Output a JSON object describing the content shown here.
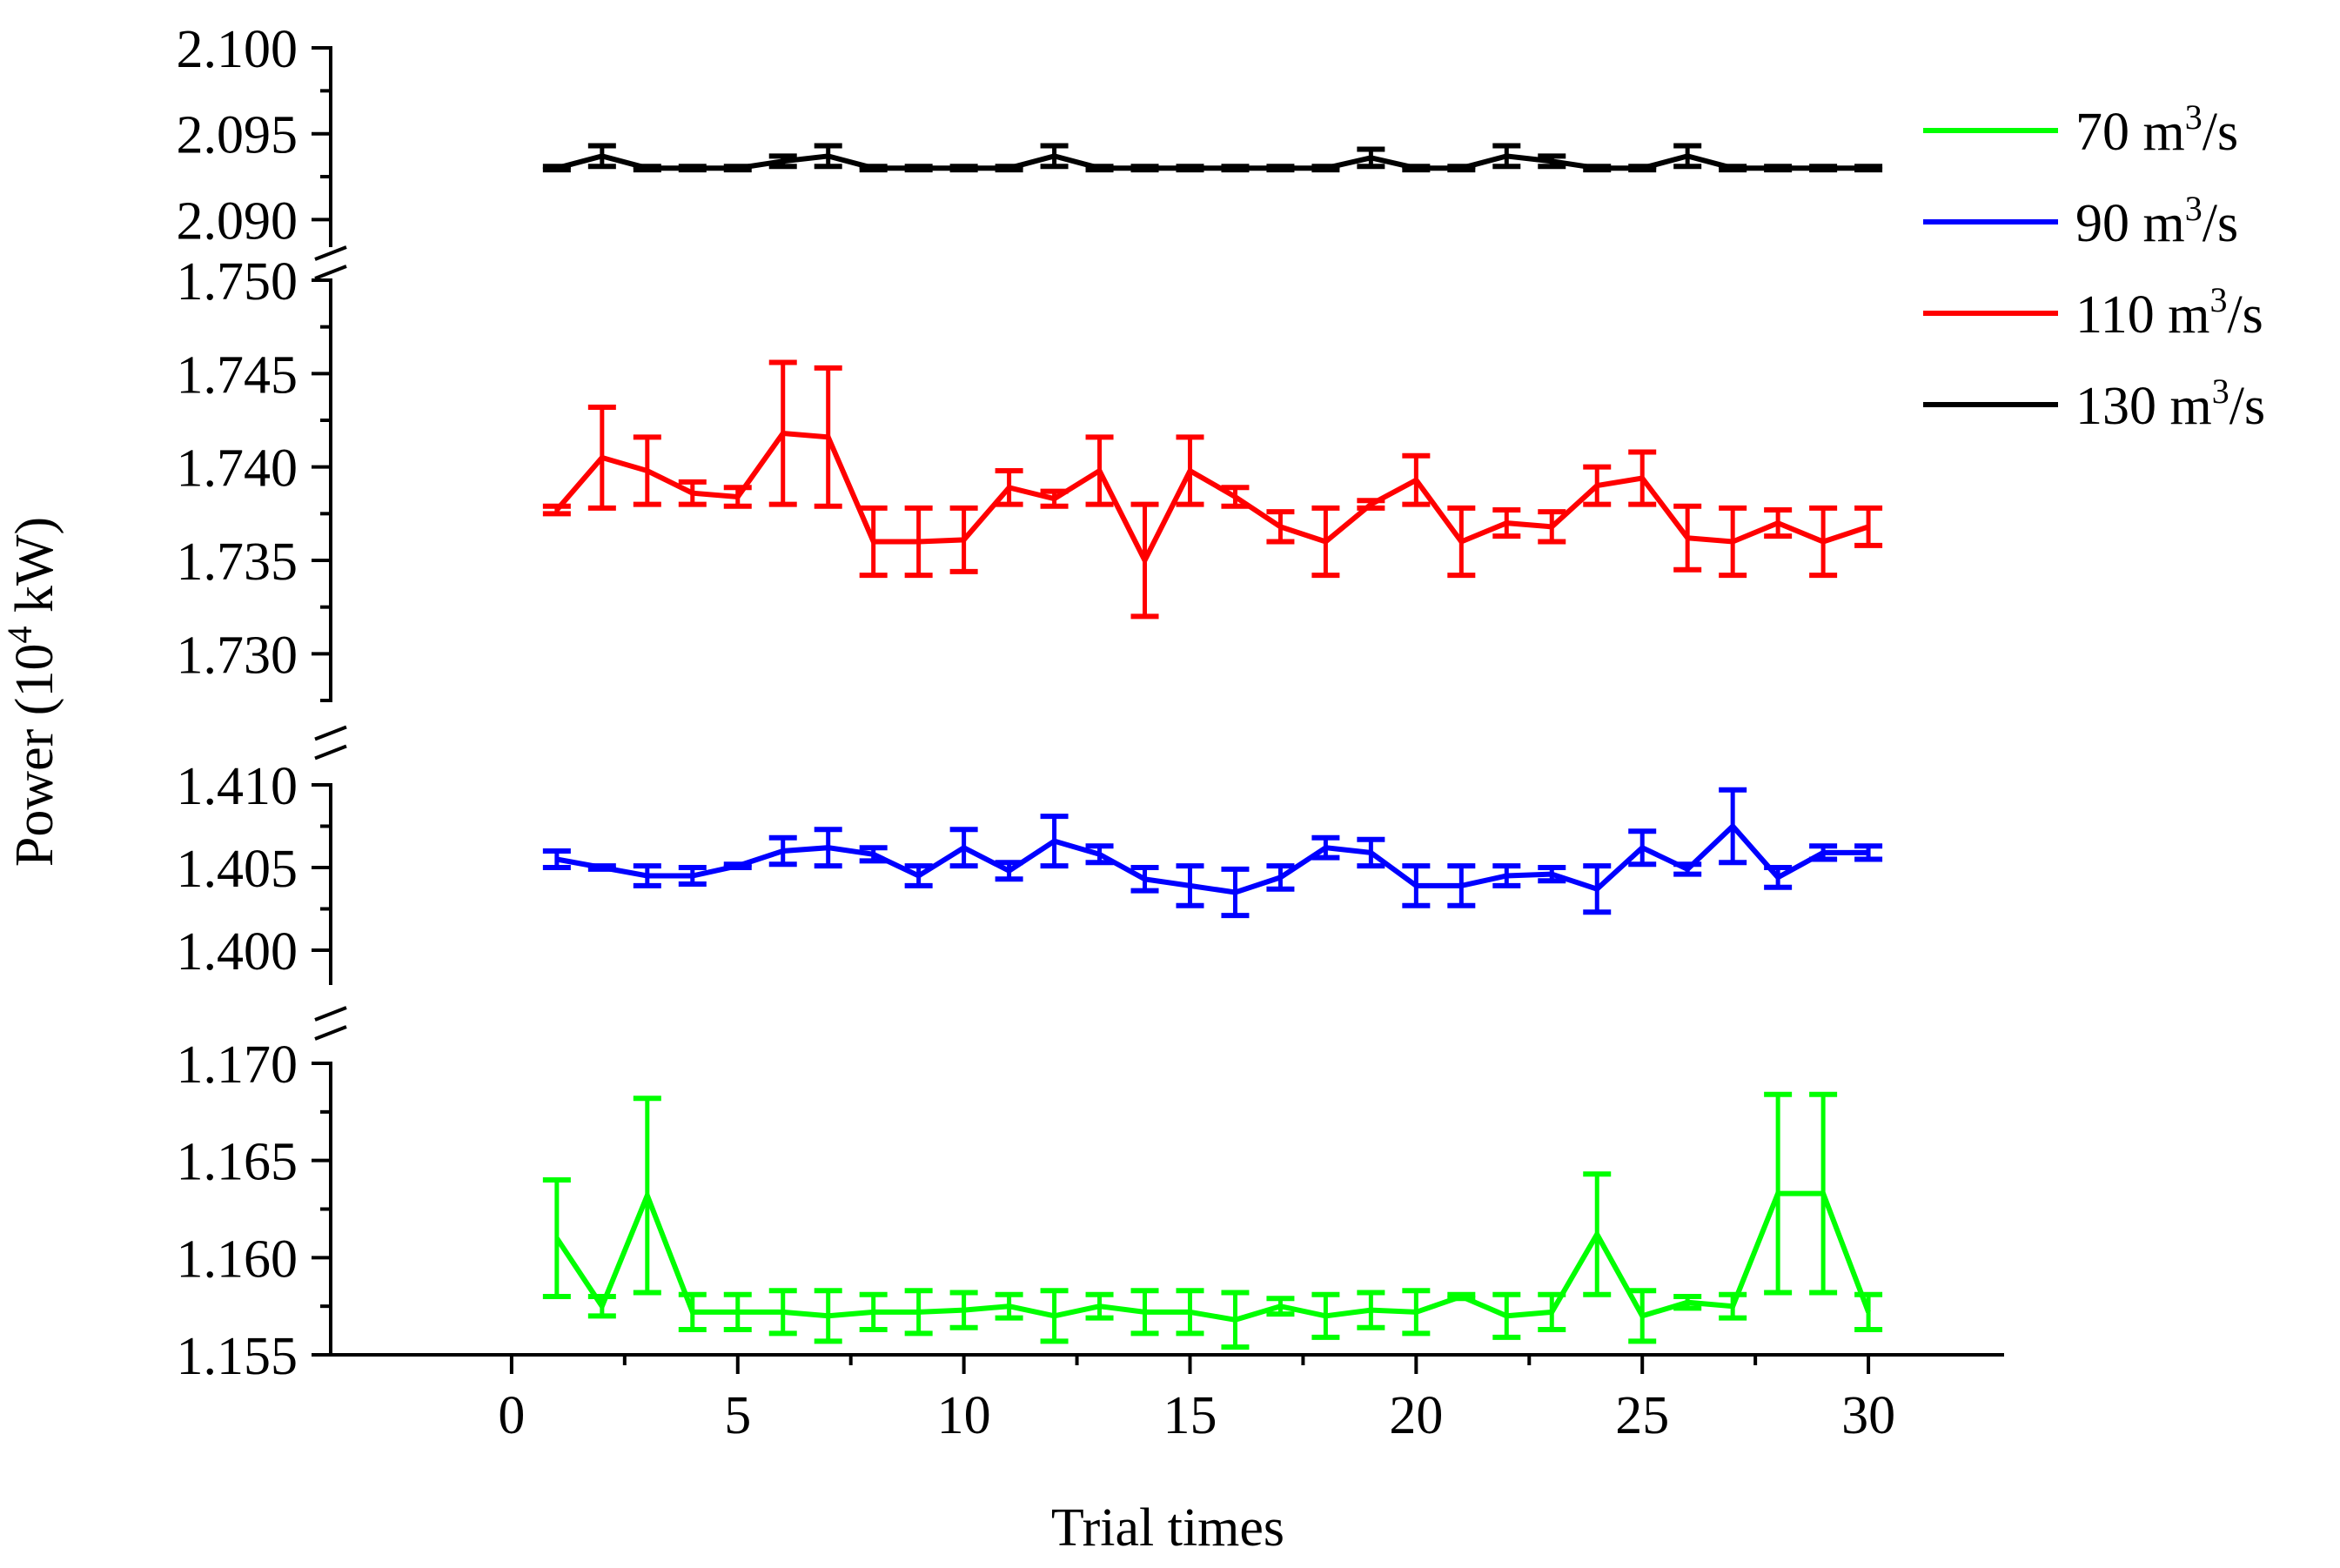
{
  "chart_data": {
    "type": "line",
    "xlabel": "Trial times",
    "ylabel": {
      "base": "Power (10",
      "sup": "4",
      "rest": " kW)"
    },
    "xlim": [
      -4,
      33
    ],
    "x_ticks": [
      0,
      5,
      10,
      15,
      20,
      25,
      30
    ],
    "x_tick_labels": [
      "0",
      "5",
      "10",
      "15",
      "20",
      "25",
      "30"
    ],
    "segments": [
      {
        "name": "130",
        "ylim": [
          2.0885,
          2.1
        ],
        "ticks": [
          2.09,
          2.095,
          2.1
        ],
        "tick_labels": [
          "2.090",
          "2.095",
          "2.100"
        ]
      },
      {
        "name": "110",
        "ylim": [
          1.7275,
          1.75
        ],
        "ticks": [
          1.73,
          1.735,
          1.74,
          1.745,
          1.75
        ],
        "tick_labels": [
          "1.730",
          "1.735",
          "1.740",
          "1.745",
          "1.750"
        ]
      },
      {
        "name": "90",
        "ylim": [
          1.398,
          1.41
        ],
        "ticks": [
          1.4,
          1.405,
          1.41
        ],
        "tick_labels": [
          "1.400",
          "1.405",
          "1.410"
        ]
      },
      {
        "name": "70",
        "ylim": [
          1.155,
          1.17
        ],
        "ticks": [
          1.155,
          1.16,
          1.165,
          1.17
        ],
        "tick_labels": [
          "1.155",
          "1.160",
          "1.165",
          "1.170"
        ]
      }
    ],
    "x": [
      1,
      2,
      3,
      4,
      5,
      6,
      7,
      8,
      9,
      10,
      11,
      12,
      13,
      14,
      15,
      16,
      17,
      18,
      19,
      20,
      21,
      22,
      23,
      24,
      25,
      26,
      27,
      28,
      29,
      30
    ],
    "series": [
      {
        "name": "70 m3/s",
        "legend_base": "70 m",
        "legend_sup": "3",
        "legend_rest": "/s",
        "color": "#00ff00",
        "segment": 3,
        "values": [
          1.161,
          1.1575,
          1.1632,
          1.1572,
          1.1572,
          1.1572,
          1.157,
          1.1572,
          1.1572,
          1.1573,
          1.1575,
          1.157,
          1.1575,
          1.1572,
          1.1572,
          1.1568,
          1.1575,
          1.157,
          1.1573,
          1.1572,
          1.158,
          1.157,
          1.1572,
          1.1612,
          1.157,
          1.1577,
          1.1575,
          1.1633,
          1.1633,
          1.1572
        ],
        "errors": [
          0.003,
          0.0005,
          0.005,
          0.0009,
          0.0009,
          0.0011,
          0.0013,
          0.0009,
          0.0011,
          0.0009,
          0.0006,
          0.0013,
          0.0006,
          0.0011,
          0.0011,
          0.0014,
          0.0004,
          0.0011,
          0.0009,
          0.0011,
          0.0001,
          0.0011,
          0.0009,
          0.0031,
          0.0013,
          0.0003,
          0.0006,
          0.0051,
          0.0051,
          0.0009
        ]
      },
      {
        "name": "90 m3/s",
        "legend_base": "90 m",
        "legend_sup": "3",
        "legend_rest": "/s",
        "color": "#0000ff",
        "segment": 2,
        "values": [
          1.4055,
          1.405,
          1.4045,
          1.4045,
          1.4051,
          1.406,
          1.4062,
          1.4058,
          1.4045,
          1.4062,
          1.4048,
          1.4066,
          1.4058,
          1.4043,
          1.4039,
          1.4035,
          1.4044,
          1.4062,
          1.4059,
          1.4039,
          1.4039,
          1.4045,
          1.4046,
          1.4037,
          1.4062,
          1.4049,
          1.4075,
          1.4044,
          1.4059,
          1.4059
        ],
        "errors": [
          0.0005,
          0.0001,
          0.0006,
          0.0005,
          0.0001,
          0.0008,
          0.0011,
          0.0004,
          0.0006,
          0.0011,
          0.0005,
          0.0015,
          0.0005,
          0.0007,
          0.0012,
          0.0014,
          0.0007,
          0.0006,
          0.0008,
          0.0012,
          0.0012,
          0.0006,
          0.0004,
          0.0014,
          0.001,
          0.0003,
          0.0022,
          0.0006,
          0.0004,
          0.0004
        ]
      },
      {
        "name": "110 m3/s",
        "legend_base": "110 m",
        "legend_sup": "3",
        "legend_rest": "/s",
        "color": "#ff0000",
        "segment": 1,
        "values": [
          1.7377,
          1.7405,
          1.7398,
          1.7386,
          1.7384,
          1.7418,
          1.7416,
          1.736,
          1.736,
          1.7361,
          1.7389,
          1.7383,
          1.7398,
          1.735,
          1.7398,
          1.7384,
          1.7368,
          1.736,
          1.738,
          1.7393,
          1.736,
          1.737,
          1.7368,
          1.739,
          1.7394,
          1.7362,
          1.736,
          1.737,
          1.736,
          1.7368
        ],
        "errors": [
          0.0002,
          0.0027,
          0.0018,
          0.0006,
          0.0005,
          0.0038,
          0.0037,
          0.0018,
          0.0018,
          0.0017,
          0.0009,
          0.0004,
          0.0018,
          0.003,
          0.0018,
          0.0005,
          0.0008,
          0.0018,
          0.0002,
          0.0013,
          0.0018,
          0.0007,
          0.0008,
          0.001,
          0.0014,
          0.0017,
          0.0018,
          0.0007,
          0.0018,
          0.001
        ]
      },
      {
        "name": "130 m3/s",
        "legend_base": "130 m",
        "legend_sup": "3",
        "legend_rest": "/s",
        "color": "#000000",
        "segment": 0,
        "values": [
          2.093,
          2.0937,
          2.093,
          2.093,
          2.093,
          2.0934,
          2.0937,
          2.093,
          2.093,
          2.093,
          2.093,
          2.0937,
          2.093,
          2.093,
          2.093,
          2.093,
          2.093,
          2.093,
          2.0936,
          2.093,
          2.093,
          2.0937,
          2.0934,
          2.093,
          2.093,
          2.0937,
          2.093,
          2.093,
          2.093,
          2.093
        ],
        "errors": [
          0.0001,
          0.0006,
          0.0001,
          0.0001,
          0.0001,
          0.0003,
          0.0006,
          0.0001,
          0.0001,
          0.0001,
          0.0001,
          0.0006,
          0.0001,
          0.0001,
          0.0001,
          0.0001,
          0.0001,
          0.0001,
          0.0005,
          0.0001,
          0.0001,
          0.0006,
          0.0003,
          0.0001,
          0.0001,
          0.0006,
          0.0001,
          0.0001,
          0.0001,
          0.0001
        ]
      }
    ],
    "legend": {
      "placement": "top-right"
    }
  }
}
